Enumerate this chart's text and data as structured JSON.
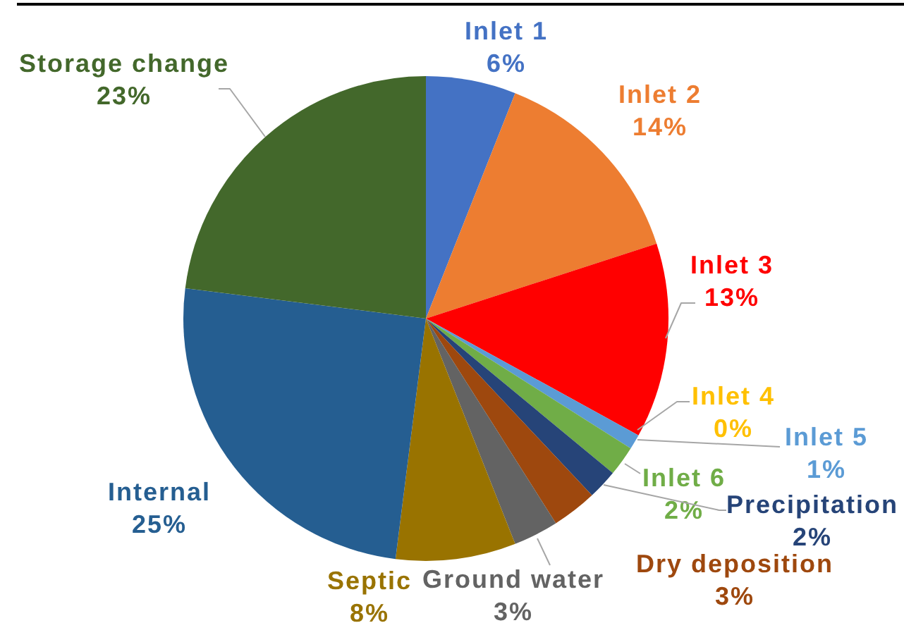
{
  "chart_data": {
    "type": "pie",
    "categories": [
      "Inlet 1",
      "Inlet 2",
      "Inlet 3",
      "Inlet 4",
      "Inlet 5",
      "Inlet 6",
      "Precipitation",
      "Dry deposition",
      "Ground water",
      "Septic",
      "Internal",
      "Storage change"
    ],
    "values": [
      6,
      14,
      13,
      0,
      1,
      2,
      2,
      3,
      3,
      8,
      25,
      23
    ],
    "colors": [
      "#4472c4",
      "#ed7d31",
      "#ff0000",
      "#ffc000",
      "#5b9bd5",
      "#70ad47",
      "#264478",
      "#9e480e",
      "#636363",
      "#997300",
      "#255e91",
      "#43682b"
    ],
    "value_labels": [
      "6%",
      "14%",
      "13%",
      "0%",
      "1%",
      "2%",
      "2%",
      "3%",
      "3%",
      "8%",
      "25%",
      "23%"
    ]
  }
}
